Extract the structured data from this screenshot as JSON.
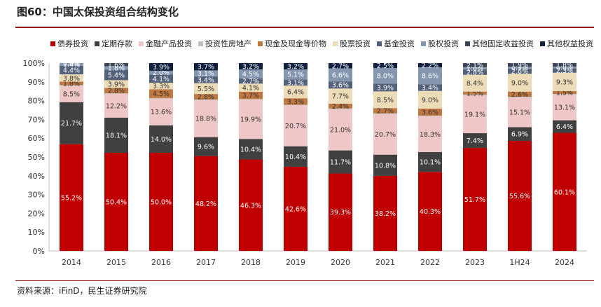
{
  "header": {
    "title": "图60：中国太保投资组合结构变化"
  },
  "footer": {
    "source": "资料来源：iFinD，民生证券研究院"
  },
  "chart_data": {
    "type": "bar",
    "stacked": true,
    "categories": [
      "2014",
      "2015",
      "2016",
      "2017",
      "2018",
      "2019",
      "2020",
      "2021",
      "2022",
      "2023",
      "1H24",
      "2024"
    ],
    "ylim": [
      0,
      100
    ],
    "yticks": [
      "0%",
      "10%",
      "20%",
      "30%",
      "40%",
      "50%",
      "60%",
      "70%",
      "80%",
      "90%",
      "100%"
    ],
    "legend_position": "top",
    "series": [
      {
        "name": "债券投资",
        "color": "#c00000",
        "label_color": "#ffffff",
        "values": [
          55.2,
          50.4,
          50.0,
          48.2,
          46.3,
          42.6,
          39.3,
          38.2,
          40.3,
          51.7,
          55.6,
          60.1
        ]
      },
      {
        "name": "定期存款",
        "color": "#404040",
        "label_color": "#ffffff",
        "values": [
          21.7,
          18.1,
          14.0,
          9.6,
          10.4,
          10.4,
          11.7,
          10.8,
          10.1,
          7.4,
          6.9,
          6.4
        ]
      },
      {
        "name": "金融产品投资",
        "color": "#f0c7c7",
        "label_color": "#333333",
        "values": [
          8.5,
          12.2,
          13.6,
          18.8,
          19.9,
          20.7,
          21.0,
          20.7,
          18.3,
          19.1,
          15.1,
          13.1
        ]
      },
      {
        "name": "投资性房地产",
        "color": "#bfbfbf",
        "label_color": "#333333",
        "values": [
          0.3,
          0.3,
          0.3,
          0.3,
          0.3,
          0.3,
          0.3,
          0.3,
          0.3,
          0.3,
          0.3,
          0.3
        ]
      },
      {
        "name": "现金及现金等价物",
        "color": "#c07840",
        "label_color": "#333333",
        "values": [
          1.8,
          2.8,
          4.5,
          2.8,
          3.7,
          3.3,
          2.4,
          2.7,
          3.6,
          1.5,
          2.6,
          1.5
        ]
      },
      {
        "name": "股票投资",
        "color": "#ecdcb8",
        "label_color": "#333333",
        "values": [
          3.8,
          3.9,
          3.3,
          5.5,
          4.1,
          6.4,
          7.7,
          8.5,
          9.0,
          8.4,
          9.0,
          9.3
        ]
      },
      {
        "name": "基金投资",
        "color": "#54617a",
        "label_color": "#ffffff",
        "values": [
          4.4,
          5.4,
          4.1,
          3.4,
          2.7,
          3.1,
          3.6,
          3.9,
          3.4,
          2.8,
          2.6,
          2.3
        ]
      },
      {
        "name": "股权投资",
        "color": "#8496b0",
        "label_color": "#ffffff",
        "values": [
          1.4,
          1.8,
          2.0,
          3.1,
          4.5,
          5.1,
          6.6,
          8.0,
          8.6,
          1.0,
          0.9,
          0.8
        ]
      },
      {
        "name": "其他固定收益投资",
        "color": "#3a4658",
        "label_color": "#ffffff",
        "values": [
          0.0,
          1.6,
          0.0,
          0.0,
          0.0,
          0.0,
          0.0,
          0.0,
          0.0,
          2.1,
          1.9,
          1.8
        ]
      },
      {
        "name": "其他权益投资",
        "color": "#0f1f3d",
        "label_color": "#ffffff",
        "values": [
          0.0,
          0.0,
          3.9,
          3.7,
          3.2,
          3.2,
          2.7,
          2.5,
          2.2,
          0.0,
          0.0,
          0.0
        ]
      }
    ],
    "data_labels": [
      [
        "55.2%",
        "21.7%",
        "8.5%",
        null,
        "1.8%",
        "3.8%",
        "4.4%",
        "1.4%",
        "0.0%",
        null
      ],
      [
        "50.4%",
        "18.1%",
        "12.2%",
        null,
        "2.8%",
        "3.9%",
        "5.4%",
        "1.8%",
        "1.6%",
        null
      ],
      [
        "50.0%",
        "14.0%",
        "13.6%",
        null,
        "4.5%",
        "3.3%",
        "4.1%",
        "2.0%",
        null,
        "3.9%"
      ],
      [
        "48.2%",
        "9.6%",
        "18.8%",
        null,
        "2.8%",
        "5.5%",
        "3.4%",
        "3.1%",
        null,
        "3.7%"
      ],
      [
        "46.3%",
        "10.4%",
        "19.9%",
        null,
        "3.7%",
        "4.1%",
        "2.7%",
        "4.5%",
        null,
        "3.2%"
      ],
      [
        "42.6%",
        "10.4%",
        "20.7%",
        null,
        "3.3%",
        "6.4%",
        "3.1%",
        "5.1%",
        null,
        "3.2%"
      ],
      [
        "39.3%",
        "11.7%",
        "21.0%",
        null,
        "2.4%",
        "7.7%",
        "3.6%",
        "6.6%",
        null,
        "2.7%"
      ],
      [
        "38.2%",
        "10.8%",
        "20.7%",
        null,
        "2.7%",
        "8.5%",
        "3.9%",
        "8.0%",
        null,
        "2.5%"
      ],
      [
        "40.3%",
        "10.1%",
        "18.3%",
        null,
        "3.6%",
        "9.0%",
        "3.4%",
        "8.6%",
        null,
        "2.2%"
      ],
      [
        "51.7%",
        "7.4%",
        "19.1%",
        null,
        "1.5%",
        "8.4%",
        "2.8%",
        "1.0%",
        "2.1%",
        null
      ],
      [
        "55.6%",
        "6.9%",
        "15.1%",
        null,
        "2.6%",
        "9.0%",
        "2.6%",
        "0.9%",
        "1.9%",
        null
      ],
      [
        "60.1%",
        "6.4%",
        "13.1%",
        null,
        "1.5%",
        "9.3%",
        "2.3%",
        "0.8%",
        "1.8%",
        null
      ]
    ]
  }
}
